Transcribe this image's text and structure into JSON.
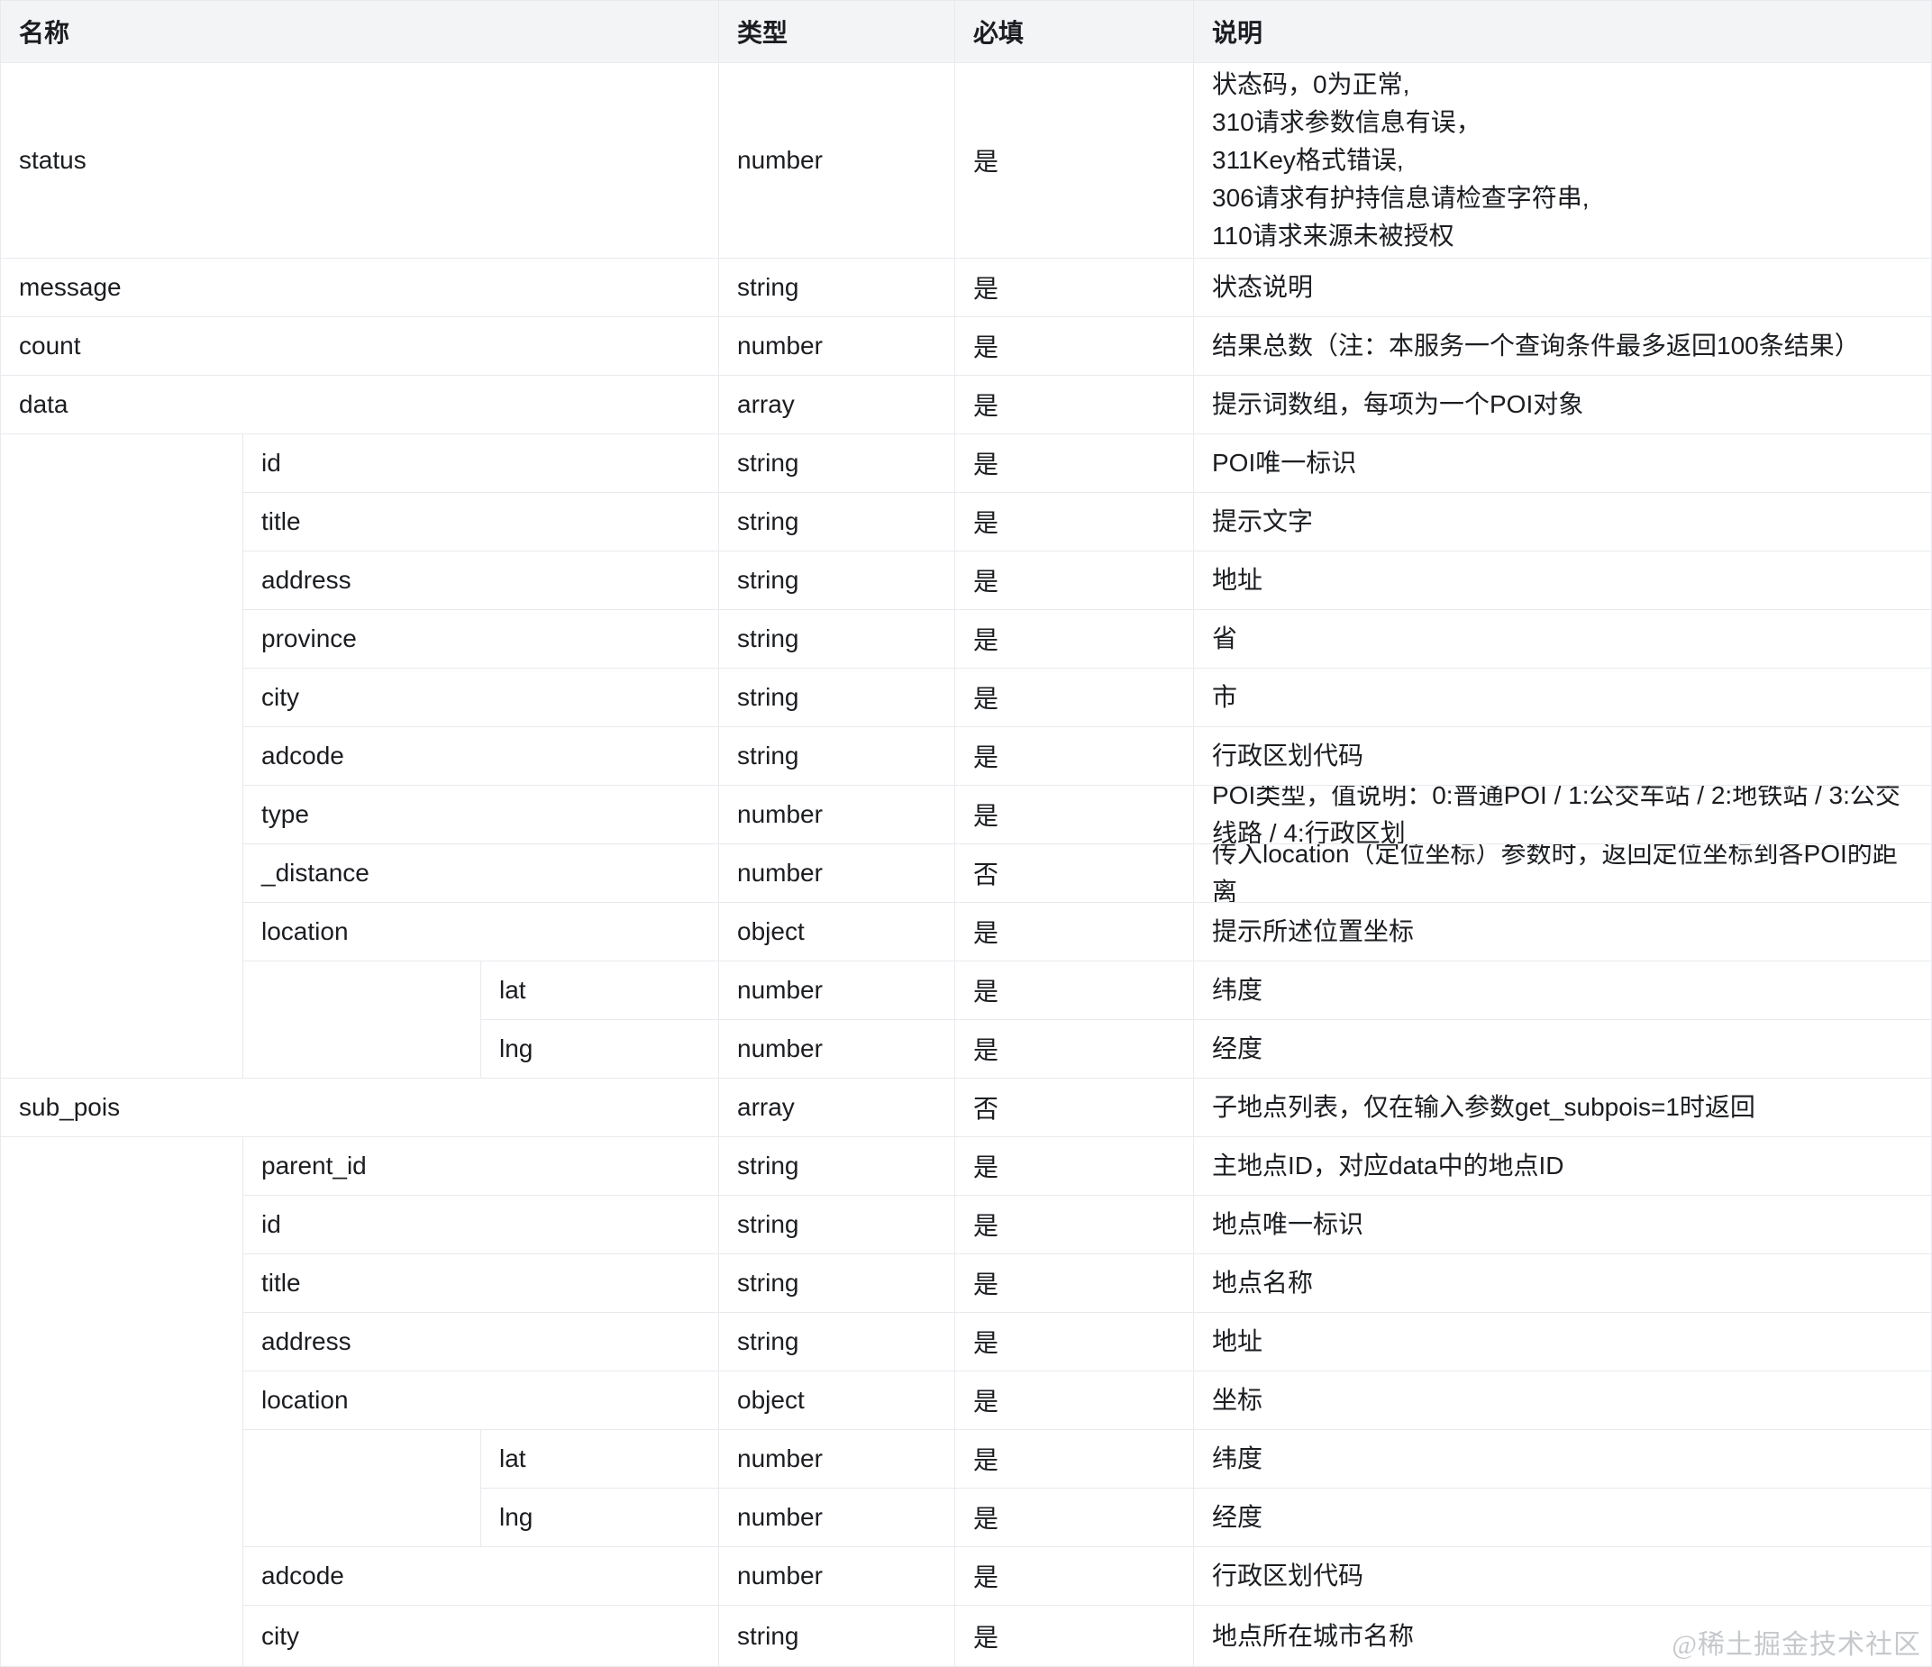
{
  "table": {
    "header": {
      "name": "名称",
      "type": "类型",
      "required": "必填",
      "description": "说明"
    },
    "rows": [
      {
        "name": "status",
        "indent": 0,
        "type": "number",
        "required": "是",
        "description": "状态码，0为正常,\n310请求参数信息有误，\n311Key格式错误,\n306请求有护持信息请检查字符串,\n110请求来源未被授权"
      },
      {
        "name": "message",
        "indent": 0,
        "type": "string",
        "required": "是",
        "description": "状态说明"
      },
      {
        "name": "count",
        "indent": 0,
        "type": "number",
        "required": "是",
        "description": "结果总数（注：本服务一个查询条件最多返回100条结果）"
      },
      {
        "name": "data",
        "indent": 0,
        "type": "array",
        "required": "是",
        "description": "提示词数组，每项为一个POI对象"
      },
      {
        "name": "id",
        "indent": 1,
        "type": "string",
        "required": "是",
        "description": "POI唯一标识"
      },
      {
        "name": "title",
        "indent": 1,
        "type": "string",
        "required": "是",
        "description": "提示文字"
      },
      {
        "name": "address",
        "indent": 1,
        "type": "string",
        "required": "是",
        "description": "地址"
      },
      {
        "name": "province",
        "indent": 1,
        "type": "string",
        "required": "是",
        "description": "省"
      },
      {
        "name": "city",
        "indent": 1,
        "type": "string",
        "required": "是",
        "description": "市"
      },
      {
        "name": "adcode",
        "indent": 1,
        "type": "string",
        "required": "是",
        "description": "行政区划代码"
      },
      {
        "name": "type",
        "indent": 1,
        "type": "number",
        "required": "是",
        "description": "POI类型，值说明：0:普通POI / 1:公交车站 / 2:地铁站 / 3:公交线路 / 4:行政区划"
      },
      {
        "name": "_distance",
        "indent": 1,
        "type": "number",
        "required": "否",
        "description": "传入location（定位坐标）参数时，返回定位坐标到各POI的距离"
      },
      {
        "name": "location",
        "indent": 1,
        "type": "object",
        "required": "是",
        "description": "提示所述位置坐标"
      },
      {
        "name": "lat",
        "indent": 2,
        "type": "number",
        "required": "是",
        "description": "纬度"
      },
      {
        "name": "lng",
        "indent": 2,
        "type": "number",
        "required": "是",
        "description": "经度"
      },
      {
        "name": "sub_pois",
        "indent": 0,
        "type": "array",
        "required": "否",
        "description": "子地点列表，仅在输入参数get_subpois=1时返回"
      },
      {
        "name": "parent_id",
        "indent": 1,
        "type": "string",
        "required": "是",
        "description": "主地点ID，对应data中的地点ID"
      },
      {
        "name": "id",
        "indent": 1,
        "type": "string",
        "required": "是",
        "description": "地点唯一标识"
      },
      {
        "name": "title",
        "indent": 1,
        "type": "string",
        "required": "是",
        "description": "地点名称"
      },
      {
        "name": "address",
        "indent": 1,
        "type": "string",
        "required": "是",
        "description": "地址"
      },
      {
        "name": "location",
        "indent": 1,
        "type": "object",
        "required": "是",
        "description": "坐标"
      },
      {
        "name": "lat",
        "indent": 2,
        "type": "number",
        "required": "是",
        "description": "纬度"
      },
      {
        "name": "lng",
        "indent": 2,
        "type": "number",
        "required": "是",
        "description": "经度"
      },
      {
        "name": "adcode",
        "indent": 1,
        "type": "number",
        "required": "是",
        "description": "行政区划代码"
      },
      {
        "name": "city",
        "indent": 1,
        "type": "string",
        "required": "是",
        "description": "地点所在城市名称"
      }
    ]
  },
  "watermark": "@稀土掘金技术社区",
  "colors": {
    "header_bg": "#f3f4f6",
    "border": "#e8eaed",
    "text": "#1b1d21",
    "watermark": "#c6c9cc"
  }
}
